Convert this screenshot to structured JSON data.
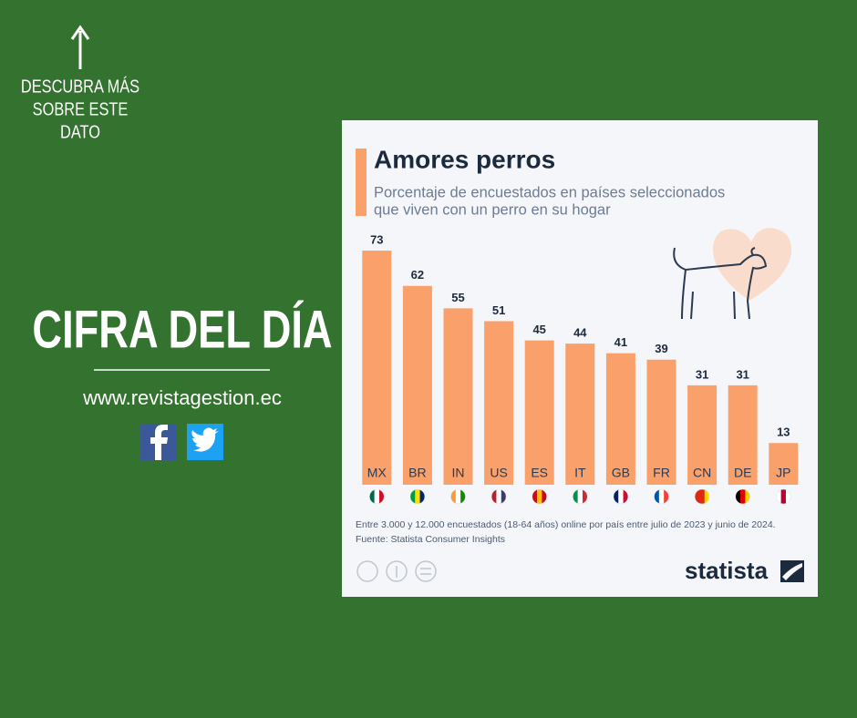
{
  "side": {
    "cta_lines": [
      "DESCUBRA MÁS",
      "SOBRE ESTE",
      "DATO"
    ],
    "headline": "CIFRA DEL DÍA",
    "url": "www.revistagestion.ec"
  },
  "chart_data": {
    "type": "bar",
    "title": "Amores perros",
    "subtitle": [
      "Porcentaje de encuestados en países seleccionados",
      "que viven con un perro en su hogar"
    ],
    "categories": [
      "MX",
      "BR",
      "IN",
      "US",
      "ES",
      "IT",
      "GB",
      "FR",
      "CN",
      "DE",
      "JP"
    ],
    "values": [
      73,
      62,
      55,
      51,
      45,
      44,
      41,
      39,
      31,
      31,
      13
    ],
    "color": "#f9a06b",
    "notes": [
      "Entre 3.000 y 12.000 encuestados (18-64 años) online por país entre julio de 2023 y junio de 2024.",
      "Fuente: Statista Consumer Insights"
    ],
    "brand": "statista"
  }
}
